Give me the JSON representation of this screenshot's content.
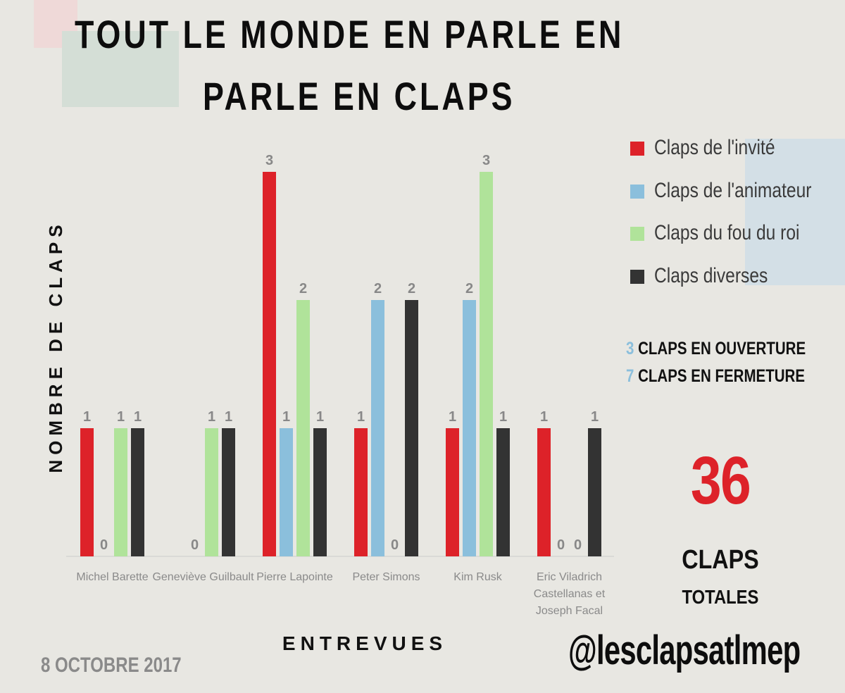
{
  "title_lines": [
    "TOUT LE MONDE EN PARLE EN",
    "PARLE EN CLAPS"
  ],
  "colors": {
    "invite": "#dd2229",
    "animateur": "#8bbfdc",
    "fou_du_roi": "#b0e39a",
    "diverses": "#333333",
    "value_label": "#888888",
    "category_label": "#8a8a8a",
    "axis": "#cccccc"
  },
  "chart_data": {
    "type": "bar",
    "categories": [
      [
        "Michel Barette"
      ],
      [
        "Geneviève Guilbault"
      ],
      [
        "Pierre Lapointe"
      ],
      [
        "Peter Simons"
      ],
      [
        "Kim Rusk"
      ],
      [
        "Eric Viladrich",
        "Castellanas et",
        "Joseph Facal"
      ]
    ],
    "series": [
      {
        "name": "Claps de l'invité",
        "color_key": "invite",
        "values": [
          1,
          null,
          3,
          1,
          1,
          1
        ]
      },
      {
        "name": "Claps de l'animateur",
        "color_key": "animateur",
        "values": [
          0,
          0,
          1,
          2,
          2,
          0
        ]
      },
      {
        "name": "Claps du fou du roi",
        "color_key": "fou_du_roi",
        "values": [
          1,
          1,
          2,
          0,
          3,
          0
        ]
      },
      {
        "name": "Claps diverses",
        "color_key": "diverses",
        "values": [
          1,
          1,
          1,
          2,
          1,
          1
        ]
      }
    ],
    "xlabel": "ENTREVUES",
    "ylabel": "NOMBRE DE CLAPS",
    "ylim": [
      0,
      3
    ],
    "grid": false,
    "legend_position": "right"
  },
  "info": {
    "opening_num": "3",
    "opening_text": " CLAPS  EN OUVERTURE",
    "closing_num": "7",
    "closing_text": " CLAPS EN FERMETURE"
  },
  "total": {
    "number": "36",
    "label_1": "CLAPS",
    "label_2": "TOTALES"
  },
  "date": "8 OCTOBRE 2017",
  "handle": "@lesclapsatlmep"
}
